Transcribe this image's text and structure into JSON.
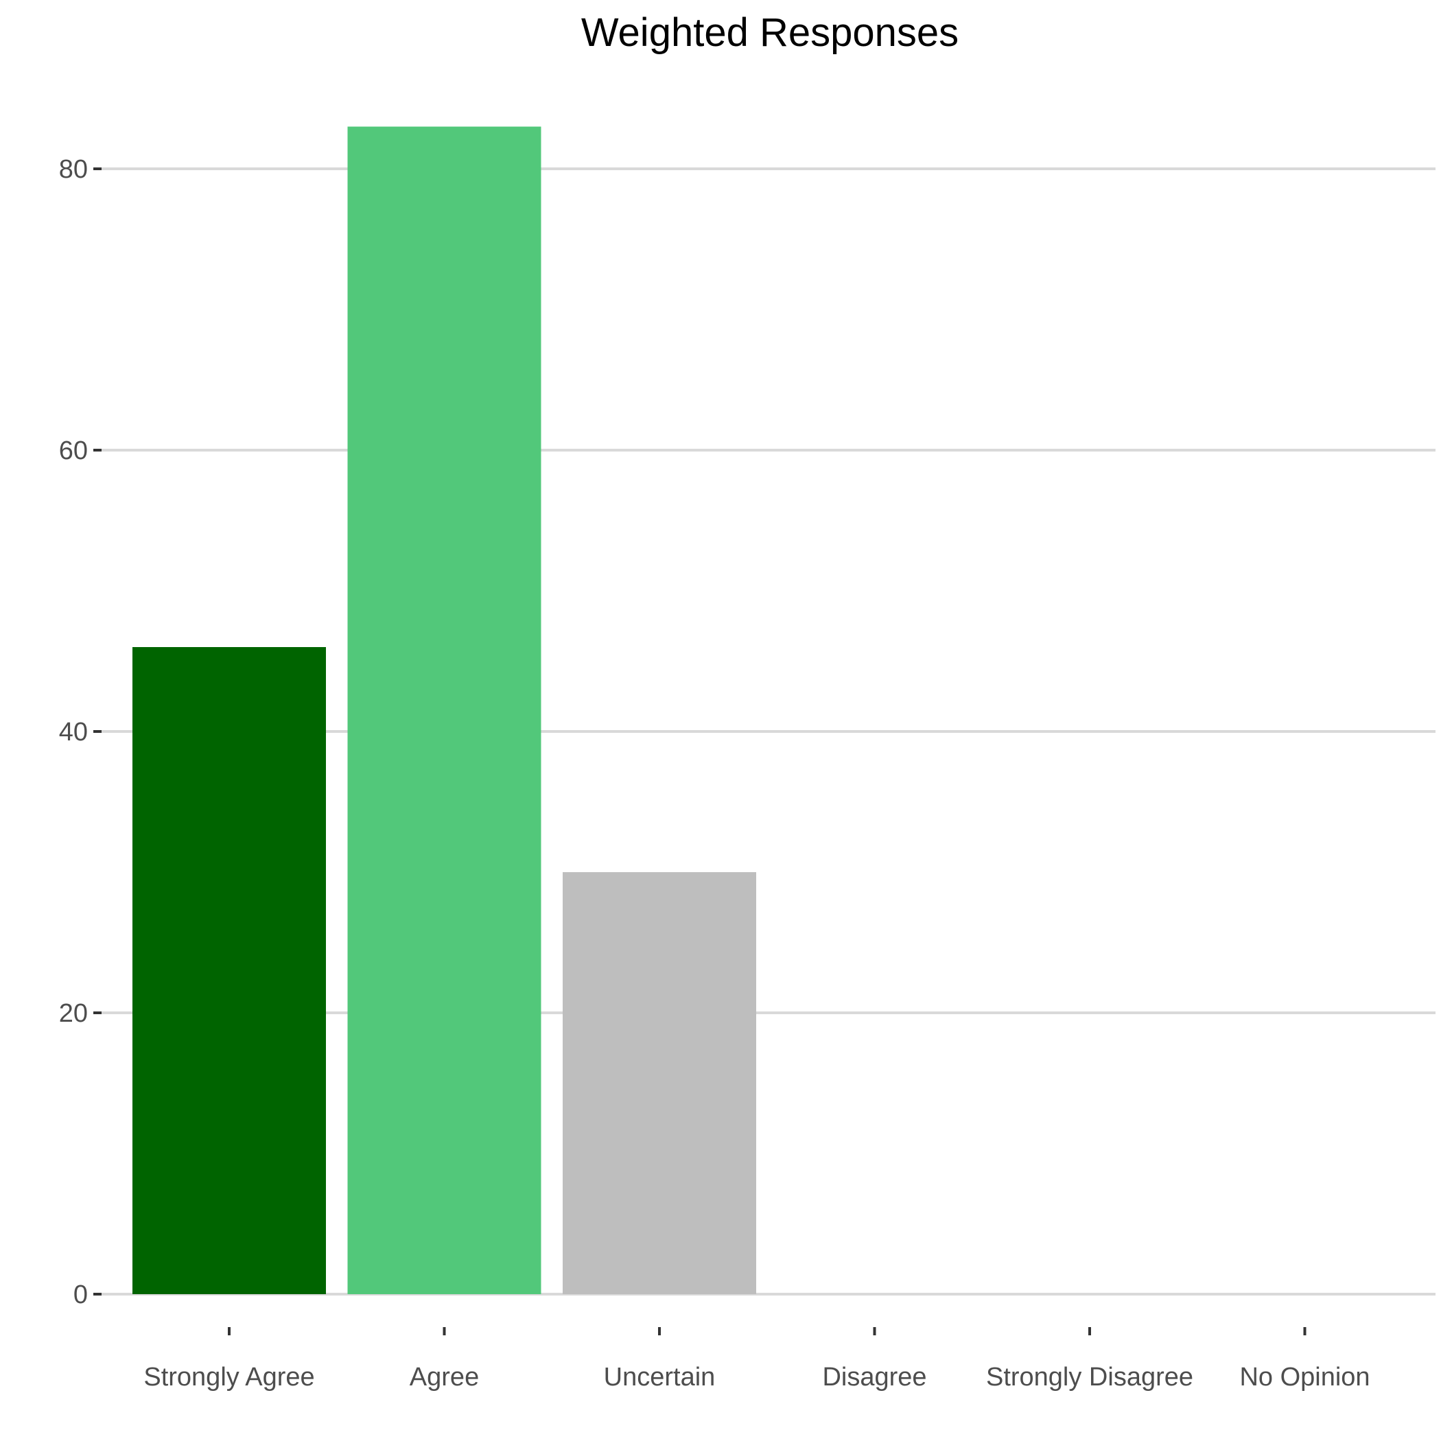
{
  "chart_data": {
    "type": "bar",
    "title": "Weighted Responses",
    "xlabel": "",
    "ylabel": "",
    "categories": [
      "Strongly Agree",
      "Agree",
      "Uncertain",
      "Disagree",
      "Strongly Disagree",
      "No Opinion"
    ],
    "values": [
      46,
      83,
      30,
      0,
      0,
      0
    ],
    "colors": [
      "#006400",
      "#52C87A",
      "#BEBEBE",
      "#BEBEBE",
      "#BEBEBE",
      "#BEBEBE"
    ],
    "yticks": [
      0,
      20,
      40,
      60,
      80
    ],
    "ylim": [
      0,
      84
    ],
    "grid": "horizontal",
    "legend": "none",
    "gridline_color": "#D9D9D9",
    "tick_label_color": "#4D4D4D"
  }
}
